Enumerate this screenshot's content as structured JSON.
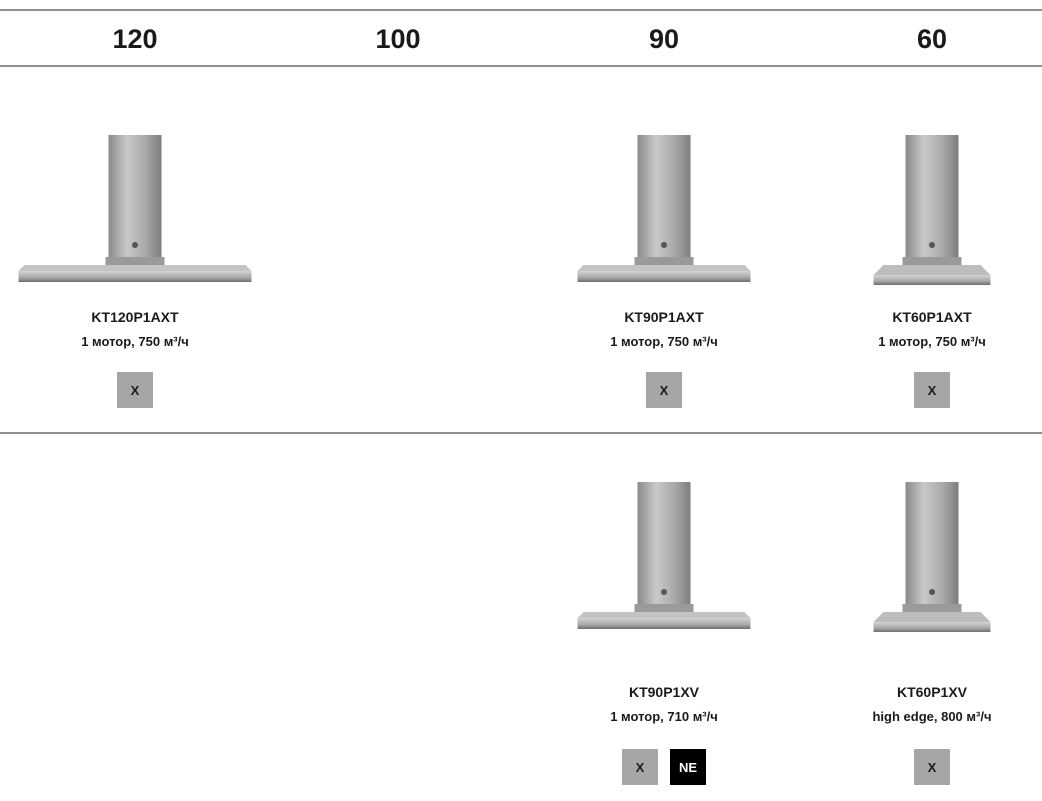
{
  "columns": [
    "120",
    "100",
    "90",
    "60"
  ],
  "rows": [
    {
      "cells": [
        {
          "model": "KT120P1AXT",
          "spec": "1 мотор, 750 м³/ч",
          "badges": [
            {
              "label": "X",
              "color": "#a6a6a6",
              "text_color": "#1a1a1a"
            }
          ]
        },
        null,
        {
          "model": "KT90P1AXT",
          "spec": "1 мотор, 750 м³/ч",
          "badges": [
            {
              "label": "X",
              "color": "#a6a6a6",
              "text_color": "#1a1a1a"
            }
          ]
        },
        {
          "model": "KT60P1AXT",
          "spec": "1 мотор, 750 м³/ч",
          "badges": [
            {
              "label": "X",
              "color": "#a6a6a6",
              "text_color": "#1a1a1a"
            }
          ]
        }
      ]
    },
    {
      "cells": [
        null,
        null,
        {
          "model": "KT90P1XV",
          "spec": "1 мотор, 710 м³/ч",
          "badges": [
            {
              "label": "X",
              "color": "#a6a6a6",
              "text_color": "#1a1a1a"
            },
            {
              "label": "NE",
              "color": "#000000",
              "text_color": "#ffffff"
            }
          ]
        },
        {
          "model": "KT60P1XV",
          "spec": "high edge, 800 м³/ч",
          "badges": [
            {
              "label": "X",
              "color": "#a6a6a6",
              "text_color": "#1a1a1a"
            }
          ]
        }
      ]
    }
  ]
}
